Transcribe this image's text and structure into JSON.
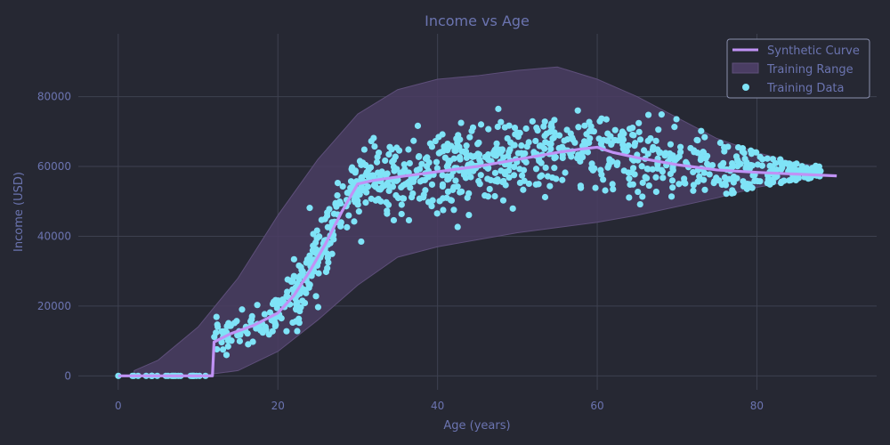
{
  "chart_data": {
    "type": "scatter",
    "title": "Income vs Age",
    "xlabel": "Age (years)",
    "ylabel": "Income (USD)",
    "xlim": [
      -5,
      95
    ],
    "ylim": [
      -4000,
      98000
    ],
    "xticks": [
      0,
      20,
      40,
      60,
      80
    ],
    "yticks": [
      0,
      20000,
      40000,
      60000,
      80000
    ],
    "grid": true,
    "legend_position": "top-right",
    "colors": {
      "background": "#262833",
      "grid": "#3e4150",
      "text": "#6b74b0",
      "curve": "#c092f5",
      "band_fill": "#4a3d63",
      "band_edge": "#5e4f7a",
      "points": "#7fe3f7",
      "legend_bg": "#262833",
      "legend_border": "#8a8fae"
    },
    "series": [
      {
        "name": "Synthetic Curve",
        "kind": "line",
        "x": [
          0,
          2,
          5,
          8,
          11.8,
          12,
          14,
          17,
          20,
          22,
          24,
          26,
          28,
          30,
          32,
          35,
          40,
          45,
          50,
          55,
          58,
          60,
          62,
          65,
          70,
          75,
          80,
          85,
          90
        ],
        "y": [
          0,
          0,
          0,
          0,
          0,
          9700,
          12000,
          14500,
          18000,
          23000,
          30000,
          38000,
          47000,
          55000,
          56000,
          57000,
          58500,
          60000,
          62000,
          64000,
          65000,
          65500,
          64000,
          62500,
          60500,
          59000,
          58300,
          57800,
          57300
        ]
      },
      {
        "name": "Training Range",
        "kind": "band",
        "x": [
          2,
          5,
          10,
          15,
          20,
          25,
          30,
          35,
          40,
          45,
          50,
          55,
          60,
          65,
          70,
          75,
          80,
          85,
          88
        ],
        "upper": [
          1500,
          4500,
          14000,
          28000,
          46000,
          62000,
          75000,
          82000,
          85000,
          86000,
          87500,
          88500,
          85000,
          80000,
          74000,
          68000,
          64000,
          61000,
          60000
        ],
        "lower": [
          0,
          0,
          0,
          1500,
          7000,
          16000,
          26000,
          34000,
          37000,
          39000,
          41000,
          42500,
          44000,
          46000,
          48500,
          51000,
          54000,
          56000,
          57000
        ]
      },
      {
        "name": "Training Data",
        "kind": "scatter",
        "generator": {
          "count": 1000,
          "seed": 42,
          "x_range": [
            0,
            88
          ]
        }
      }
    ]
  }
}
